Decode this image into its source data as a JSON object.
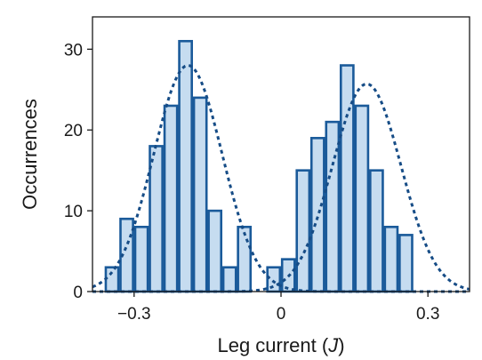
{
  "chart_data": {
    "type": "bar",
    "xlabel": "Leg current (",
    "xlabel_italic": "J",
    "xlabel_suffix": ")",
    "ylabel": "Occurrences",
    "xlim": [
      -0.385,
      0.385
    ],
    "ylim": [
      0,
      34
    ],
    "x_ticks": [
      {
        "value": -0.3,
        "label": "−0.3"
      },
      {
        "value": 0,
        "label": "0"
      },
      {
        "value": 0.3,
        "label": "0.3"
      }
    ],
    "y_ticks": [
      {
        "value": 0,
        "label": "0"
      },
      {
        "value": 10,
        "label": "10"
      },
      {
        "value": 20,
        "label": "20"
      },
      {
        "value": 30,
        "label": "30"
      }
    ],
    "bin_width": 0.03,
    "bin_centers": [
      -0.345,
      -0.315,
      -0.285,
      -0.255,
      -0.225,
      -0.195,
      -0.165,
      -0.135,
      -0.105,
      -0.075,
      -0.045,
      -0.015,
      0.015,
      0.045,
      0.075,
      0.105,
      0.135,
      0.165,
      0.195,
      0.225,
      0.255,
      0.285,
      0.315,
      0.345
    ],
    "values": [
      3,
      9,
      8,
      18,
      23,
      31,
      24,
      10,
      3,
      8,
      0,
      3,
      4,
      15,
      19,
      21,
      28,
      23,
      15,
      8,
      7,
      0,
      0,
      0
    ],
    "fits": [
      {
        "type": "gaussian",
        "center": -0.19,
        "sigma": 0.07,
        "amplitude": 28
      },
      {
        "type": "gaussian",
        "center": 0.175,
        "sigma": 0.07,
        "amplitude": 25.7
      }
    ],
    "grid": false,
    "colors": {
      "bar_fill": "#c6dcf0",
      "bar_edge": "#1a5a9a",
      "fit_line": "#164c86",
      "axis": "#1a1a1a"
    }
  }
}
